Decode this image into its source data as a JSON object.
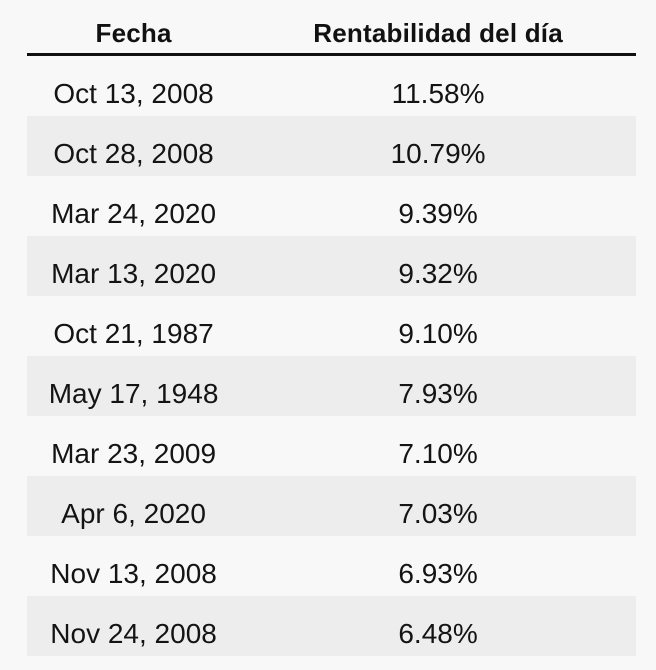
{
  "table": {
    "columns": [
      {
        "label": "Fecha"
      },
      {
        "label": "Rentabilidad del día"
      }
    ],
    "rows": [
      {
        "fecha": "Oct 13, 2008",
        "rentabilidad": "11.58%"
      },
      {
        "fecha": "Oct 28, 2008",
        "rentabilidad": "10.79%"
      },
      {
        "fecha": "Mar 24, 2020",
        "rentabilidad": "9.39%"
      },
      {
        "fecha": "Mar 13, 2020",
        "rentabilidad": "9.32%"
      },
      {
        "fecha": "Oct 21, 1987",
        "rentabilidad": "9.10%"
      },
      {
        "fecha": "May 17, 1948",
        "rentabilidad": "7.93%"
      },
      {
        "fecha": "Mar 23, 2009",
        "rentabilidad": "7.10%"
      },
      {
        "fecha": "Apr 6, 2020",
        "rentabilidad": "7.03%"
      },
      {
        "fecha": "Nov 13, 2008",
        "rentabilidad": "6.93%"
      },
      {
        "fecha": "Nov 24, 2008",
        "rentabilidad": "6.48%"
      }
    ],
    "colors": {
      "background": "#f8f8f8",
      "stripe": "#ededed",
      "text": "#141414",
      "header_rule": "#111111"
    }
  },
  "chart_data": {
    "type": "table",
    "columns": [
      "Fecha",
      "Rentabilidad del día"
    ],
    "categories": [
      "Oct 13, 2008",
      "Oct 28, 2008",
      "Mar 24, 2020",
      "Mar 13, 2020",
      "Oct 21, 1987",
      "May 17, 1948",
      "Mar 23, 2009",
      "Apr 6, 2020",
      "Nov 13, 2008",
      "Nov 24, 2008"
    ],
    "values": [
      11.58,
      10.79,
      9.39,
      9.32,
      9.1,
      7.93,
      7.1,
      7.03,
      6.93,
      6.48
    ],
    "value_unit": "%",
    "layout": {
      "striped_rows": true,
      "header_rule": true,
      "alignment": "center"
    }
  }
}
